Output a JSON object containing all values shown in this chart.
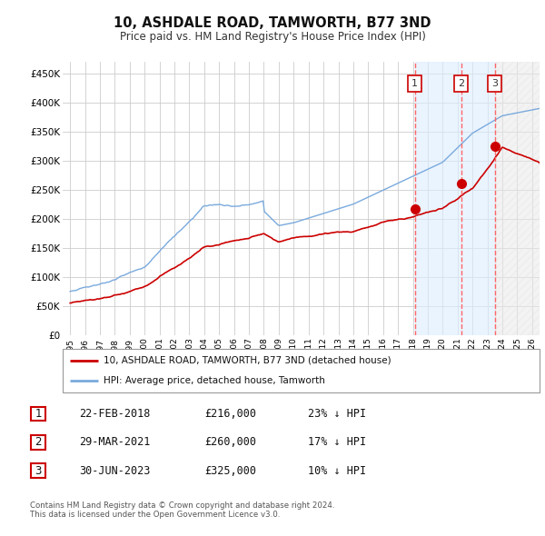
{
  "title": "10, ASHDALE ROAD, TAMWORTH, B77 3ND",
  "subtitle": "Price paid vs. HM Land Registry's House Price Index (HPI)",
  "ylim": [
    0,
    470000
  ],
  "yticks": [
    0,
    50000,
    100000,
    150000,
    200000,
    250000,
    300000,
    350000,
    400000,
    450000
  ],
  "ytick_labels": [
    "£0",
    "£50K",
    "£100K",
    "£150K",
    "£200K",
    "£250K",
    "£300K",
    "£350K",
    "£400K",
    "£450K"
  ],
  "background_color": "#ffffff",
  "grid_color": "#cccccc",
  "hpi_color": "#7aaadd",
  "price_color": "#cc0000",
  "sale_marker_color": "#cc0000",
  "vline_color": "#ff6666",
  "shade_color": "#ddeeff",
  "transactions": [
    {
      "num": 1,
      "date_x": 2018.13,
      "price": 216000,
      "label": "22-FEB-2018",
      "price_str": "£216,000",
      "hpi_str": "23% ↓ HPI"
    },
    {
      "num": 2,
      "date_x": 2021.25,
      "price": 260000,
      "label": "29-MAR-2021",
      "price_str": "£260,000",
      "hpi_str": "17% ↓ HPI"
    },
    {
      "num": 3,
      "date_x": 2023.5,
      "price": 325000,
      "label": "30-JUN-2023",
      "price_str": "£325,000",
      "hpi_str": "10% ↓ HPI"
    }
  ],
  "legend_line1": "10, ASHDALE ROAD, TAMWORTH, B77 3ND (detached house)",
  "legend_line2": "HPI: Average price, detached house, Tamworth",
  "footnote": "Contains HM Land Registry data © Crown copyright and database right 2024.\nThis data is licensed under the Open Government Licence v3.0.",
  "xlim": [
    1994.5,
    2026.5
  ],
  "xtick_years": [
    1995,
    1996,
    1997,
    1998,
    1999,
    2000,
    2001,
    2002,
    2003,
    2004,
    2005,
    2006,
    2007,
    2008,
    2009,
    2010,
    2011,
    2012,
    2013,
    2014,
    2015,
    2016,
    2017,
    2018,
    2019,
    2020,
    2021,
    2022,
    2023,
    2024,
    2025,
    2026
  ],
  "hatch_start": 2023.5,
  "hatch_end": 2026.5
}
